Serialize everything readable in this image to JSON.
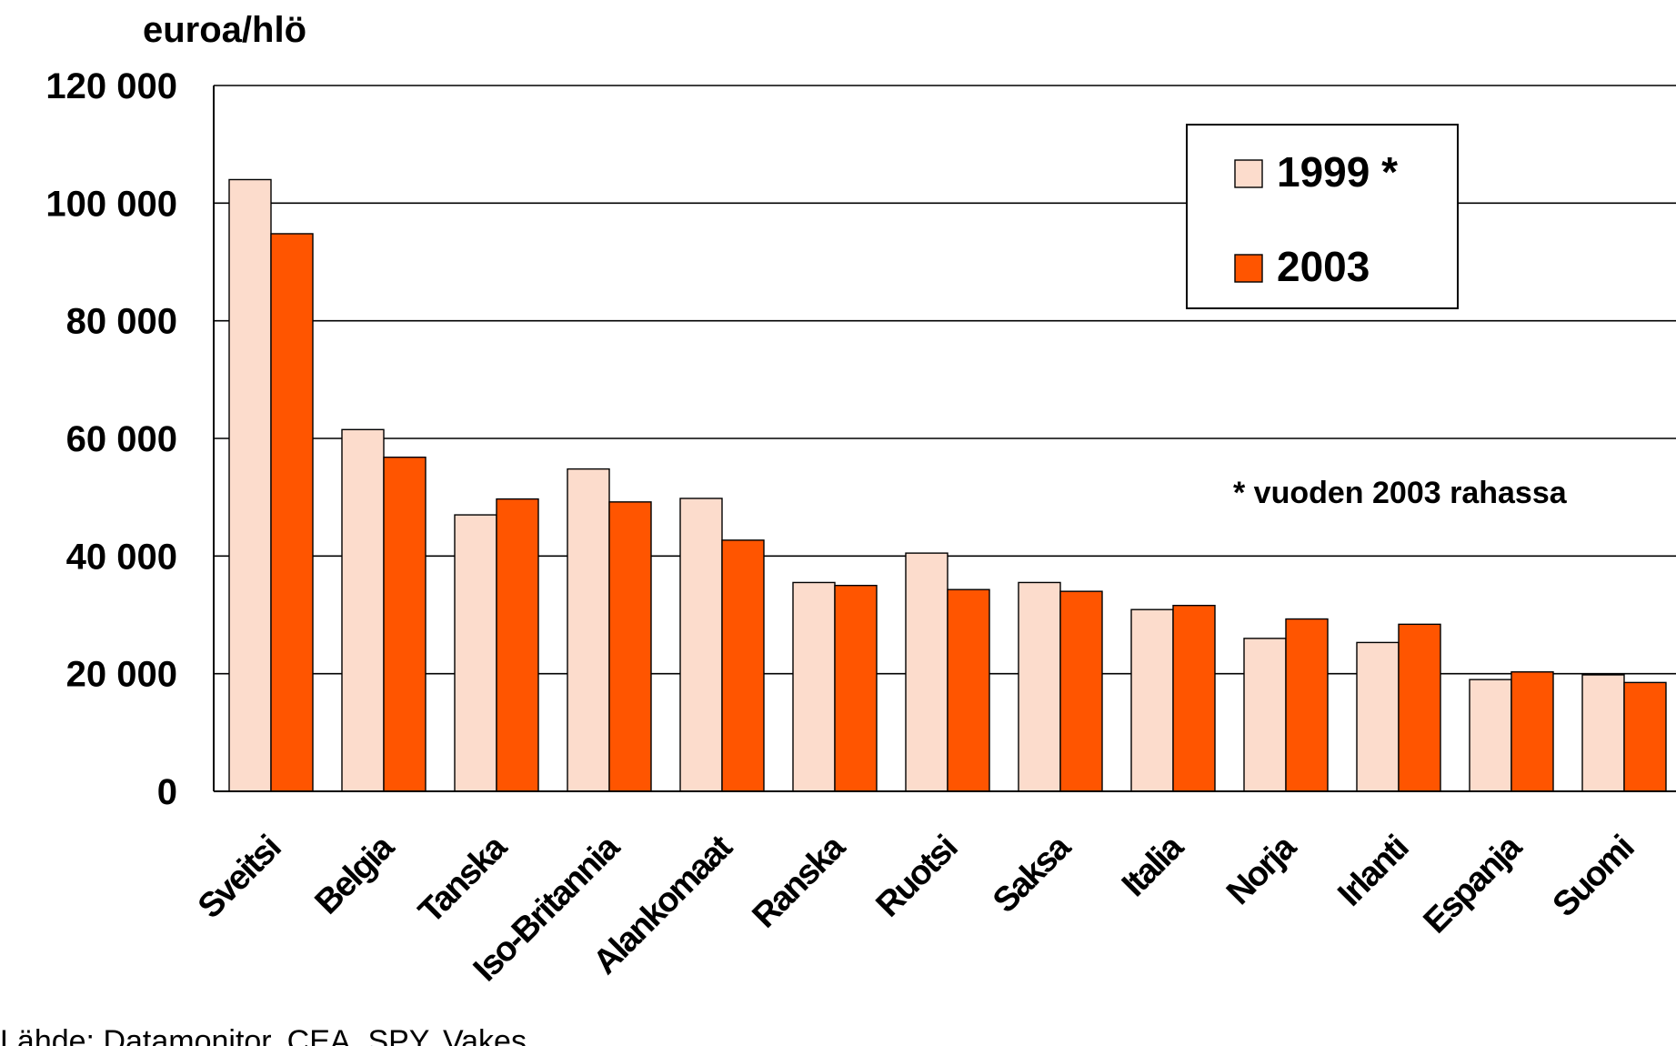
{
  "chart_data": {
    "type": "bar",
    "ylabel": "euroa/hlö",
    "ylim": [
      0,
      120000
    ],
    "yticks": [
      0,
      20000,
      40000,
      60000,
      80000,
      100000,
      120000
    ],
    "ytick_labels": [
      "0",
      "20 000",
      "40 000",
      "60 000",
      "80 000",
      "100 000",
      "120 000"
    ],
    "grid": true,
    "categories": [
      "Sveitsi",
      "Belgia",
      "Tanska",
      "Iso-Britannia",
      "Alankomaat",
      "Ranska",
      "Ruotsi",
      "Saksa",
      "Italia",
      "Norja",
      "Irlanti",
      "Espanja",
      "Suomi"
    ],
    "series": [
      {
        "name": "1999 *",
        "color": "#FCDCCC",
        "values": [
          104000,
          61500,
          47000,
          54800,
          49800,
          35500,
          40500,
          35500,
          30900,
          26000,
          25300,
          19000,
          19800
        ]
      },
      {
        "name": "2003",
        "color": "#FF5500",
        "values": [
          94800,
          56800,
          49700,
          49200,
          42700,
          35000,
          34300,
          34000,
          31600,
          29300,
          28400,
          20300,
          18500
        ]
      }
    ],
    "legend_position": "top-right",
    "annotation": "* vuoden 2003 rahassa",
    "source": "Lähde: Datamonitor, CEA, SPY, Vakes"
  }
}
